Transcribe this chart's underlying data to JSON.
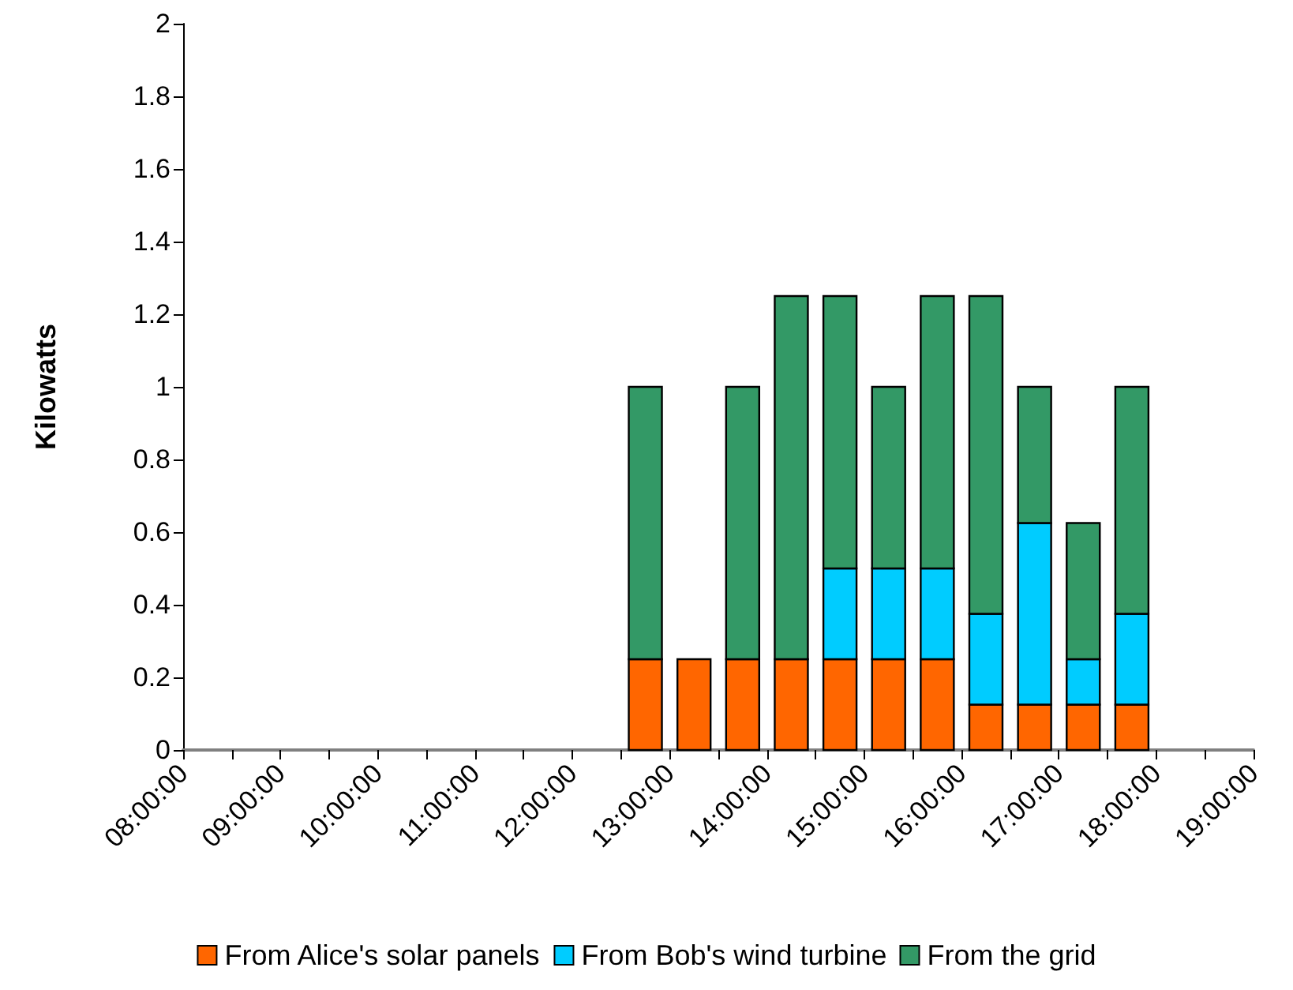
{
  "chart_data": {
    "type": "bar",
    "stacked": true,
    "ylabel": "Kilowatts",
    "x": [
      12.75,
      13.25,
      13.75,
      14.25,
      14.75,
      15.25,
      15.75,
      16.25,
      16.75,
      17.25,
      17.75
    ],
    "series": [
      {
        "name": "From Alice's solar panels",
        "color": "#ff6600",
        "values": [
          0.25,
          0.25,
          0.25,
          0.25,
          0.25,
          0.25,
          0.25,
          0.125,
          0.125,
          0.125,
          0.125
        ]
      },
      {
        "name": "From Bob's wind turbine",
        "color": "#00ccff",
        "values": [
          0,
          0,
          0,
          0,
          0.25,
          0.25,
          0.25,
          0.25,
          0.5,
          0.125,
          0.25
        ]
      },
      {
        "name": "From the grid",
        "color": "#339966",
        "values": [
          0.75,
          0,
          0.75,
          1,
          0.75,
          0.5,
          0.75,
          0.875,
          0.375,
          0.375,
          0.625
        ]
      }
    ],
    "xlim": [
      8,
      19
    ],
    "xticks": [
      {
        "value": 8,
        "label": "08:00:00"
      },
      {
        "value": 8.5,
        "label": null
      },
      {
        "value": 9,
        "label": "09:00:00"
      },
      {
        "value": 9.5,
        "label": null
      },
      {
        "value": 10,
        "label": "10:00:00"
      },
      {
        "value": 10.5,
        "label": null
      },
      {
        "value": 11,
        "label": "11:00:00"
      },
      {
        "value": 11.5,
        "label": null
      },
      {
        "value": 12,
        "label": "12:00:00"
      },
      {
        "value": 12.5,
        "label": null
      },
      {
        "value": 13,
        "label": "13:00:00"
      },
      {
        "value": 13.5,
        "label": null
      },
      {
        "value": 14,
        "label": "14:00:00"
      },
      {
        "value": 14.5,
        "label": null
      },
      {
        "value": 15,
        "label": "15:00:00"
      },
      {
        "value": 15.5,
        "label": null
      },
      {
        "value": 16,
        "label": "16:00:00"
      },
      {
        "value": 16.5,
        "label": null
      },
      {
        "value": 17,
        "label": "17:00:00"
      },
      {
        "value": 17.5,
        "label": null
      },
      {
        "value": 18,
        "label": "18:00:00"
      },
      {
        "value": 18.5,
        "label": null
      },
      {
        "value": 19,
        "label": "19:00:00"
      }
    ],
    "ylim": [
      0,
      2
    ],
    "yticks": [
      0,
      0.2,
      0.4,
      0.6,
      0.8,
      1,
      1.2,
      1.4,
      1.6,
      1.8,
      2
    ],
    "grid": false,
    "legend": "bottom"
  }
}
